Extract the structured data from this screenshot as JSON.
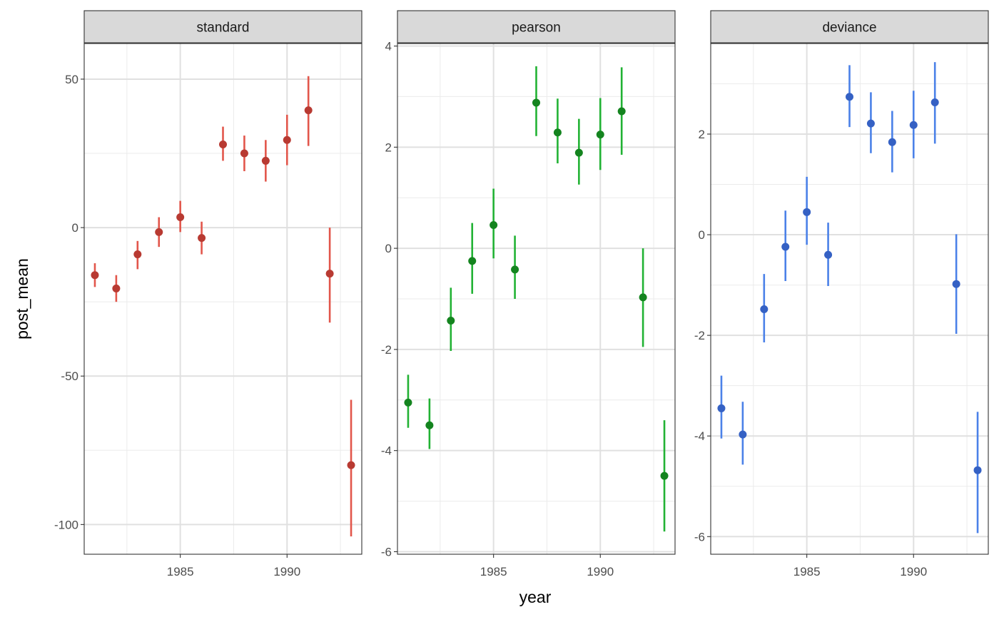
{
  "chart_data": {
    "type": "scatter",
    "xlabel": "year",
    "ylabel": "post_mean",
    "grid": true,
    "facets": [
      {
        "name": "standard",
        "color": "#E2564B",
        "point_color": "#B83A32",
        "ylim": [
          -110,
          62
        ],
        "xlim": [
          1980.5,
          1993.5
        ],
        "yticks": [
          50,
          0,
          -50,
          -100
        ],
        "ytick_labels": [
          "50",
          "0",
          "-50",
          "-100"
        ],
        "xticks": [
          1985,
          1990
        ],
        "xtick_labels": [
          "1985",
          "1990"
        ],
        "points": [
          {
            "x": 1981,
            "y": -16,
            "lo": -20,
            "hi": -12
          },
          {
            "x": 1982,
            "y": -20.5,
            "lo": -25,
            "hi": -16
          },
          {
            "x": 1983,
            "y": -9,
            "lo": -14,
            "hi": -4.5
          },
          {
            "x": 1984,
            "y": -1.5,
            "lo": -6.5,
            "hi": 3.5
          },
          {
            "x": 1985,
            "y": 3.5,
            "lo": -1.5,
            "hi": 9
          },
          {
            "x": 1986,
            "y": -3.5,
            "lo": -9,
            "hi": 2
          },
          {
            "x": 1987,
            "y": 28,
            "lo": 22.5,
            "hi": 34
          },
          {
            "x": 1988,
            "y": 25,
            "lo": 19,
            "hi": 31
          },
          {
            "x": 1989,
            "y": 22.5,
            "lo": 15.5,
            "hi": 29.5
          },
          {
            "x": 1990,
            "y": 29.5,
            "lo": 21,
            "hi": 38
          },
          {
            "x": 1991,
            "y": 39.5,
            "lo": 27.5,
            "hi": 51
          },
          {
            "x": 1992,
            "y": -15.5,
            "lo": -32,
            "hi": 0
          },
          {
            "x": 1993,
            "y": -80,
            "lo": -104,
            "hi": -58
          }
        ]
      },
      {
        "name": "pearson",
        "color": "#22B234",
        "point_color": "#14841F",
        "ylim": [
          -6.05,
          4.05
        ],
        "xlim": [
          1980.5,
          1993.5
        ],
        "yticks": [
          4,
          2,
          0,
          -2,
          -4,
          -6
        ],
        "ytick_labels": [
          "4",
          "2",
          "0",
          "-2",
          "-4",
          "-6"
        ],
        "xticks": [
          1985,
          1990
        ],
        "xtick_labels": [
          "1985",
          "1990"
        ],
        "points": [
          {
            "x": 1981,
            "y": -3.05,
            "lo": -3.55,
            "hi": -2.5
          },
          {
            "x": 1982,
            "y": -3.5,
            "lo": -3.97,
            "hi": -2.97
          },
          {
            "x": 1983,
            "y": -1.43,
            "lo": -2.03,
            "hi": -0.78
          },
          {
            "x": 1984,
            "y": -0.25,
            "lo": -0.9,
            "hi": 0.5
          },
          {
            "x": 1985,
            "y": 0.46,
            "lo": -0.2,
            "hi": 1.18
          },
          {
            "x": 1986,
            "y": -0.42,
            "lo": -1.0,
            "hi": 0.25
          },
          {
            "x": 1987,
            "y": 2.88,
            "lo": 2.22,
            "hi": 3.6
          },
          {
            "x": 1988,
            "y": 2.29,
            "lo": 1.68,
            "hi": 2.96
          },
          {
            "x": 1989,
            "y": 1.89,
            "lo": 1.26,
            "hi": 2.56
          },
          {
            "x": 1990,
            "y": 2.25,
            "lo": 1.55,
            "hi": 2.97
          },
          {
            "x": 1991,
            "y": 2.71,
            "lo": 1.85,
            "hi": 3.58
          },
          {
            "x": 1992,
            "y": -0.97,
            "lo": -1.95,
            "hi": 0.0
          },
          {
            "x": 1993,
            "y": -4.5,
            "lo": -5.6,
            "hi": -3.4
          }
        ]
      },
      {
        "name": "deviance",
        "color": "#4B81E8",
        "point_color": "#3561C4",
        "ylim": [
          -6.35,
          3.8
        ],
        "xlim": [
          1980.5,
          1993.5
        ],
        "yticks": [
          2,
          0,
          -2,
          -4,
          -6
        ],
        "ytick_labels": [
          "2",
          "0",
          "-2",
          "-4",
          "-6"
        ],
        "xticks": [
          1985,
          1990
        ],
        "xtick_labels": [
          "1985",
          "1990"
        ],
        "points": [
          {
            "x": 1981,
            "y": -3.45,
            "lo": -4.05,
            "hi": -2.8
          },
          {
            "x": 1982,
            "y": -3.97,
            "lo": -4.57,
            "hi": -3.32
          },
          {
            "x": 1983,
            "y": -1.48,
            "lo": -2.14,
            "hi": -0.78
          },
          {
            "x": 1984,
            "y": -0.24,
            "lo": -0.92,
            "hi": 0.48
          },
          {
            "x": 1985,
            "y": 0.45,
            "lo": -0.2,
            "hi": 1.15
          },
          {
            "x": 1986,
            "y": -0.4,
            "lo": -1.02,
            "hi": 0.24
          },
          {
            "x": 1987,
            "y": 2.74,
            "lo": 2.14,
            "hi": 3.37
          },
          {
            "x": 1988,
            "y": 2.21,
            "lo": 1.62,
            "hi": 2.83
          },
          {
            "x": 1989,
            "y": 1.84,
            "lo": 1.24,
            "hi": 2.46
          },
          {
            "x": 1990,
            "y": 2.18,
            "lo": 1.52,
            "hi": 2.86
          },
          {
            "x": 1991,
            "y": 2.63,
            "lo": 1.81,
            "hi": 3.43
          },
          {
            "x": 1992,
            "y": -0.98,
            "lo": -1.97,
            "hi": 0.01
          },
          {
            "x": 1993,
            "y": -4.68,
            "lo": -5.93,
            "hi": -3.52
          }
        ]
      }
    ]
  }
}
